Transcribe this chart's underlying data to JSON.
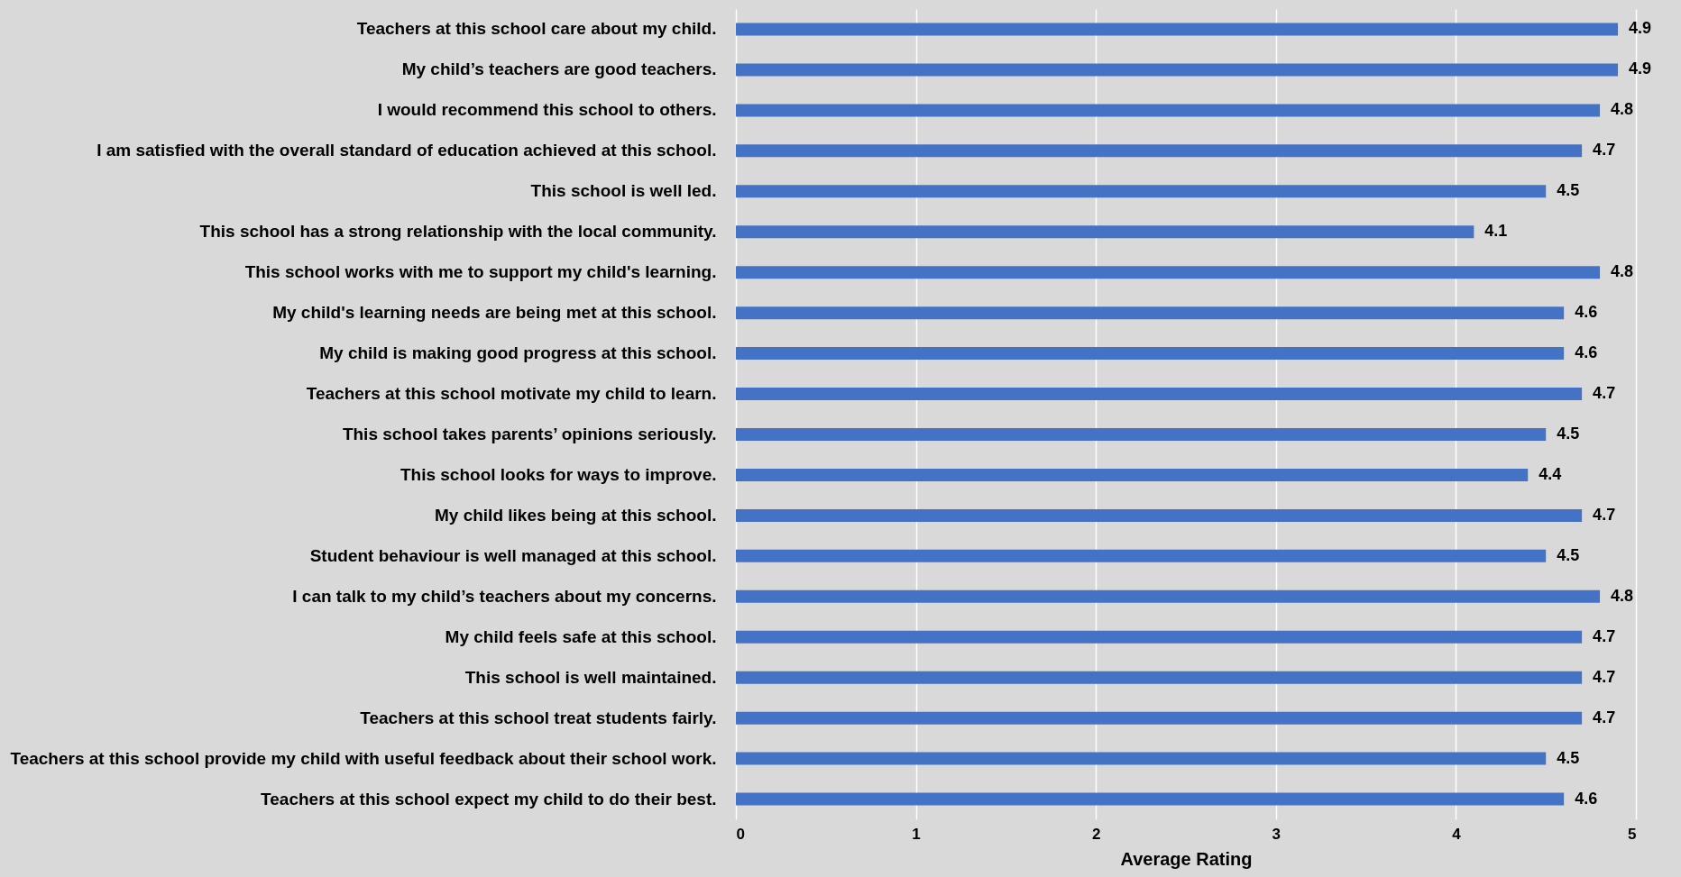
{
  "chart_data": {
    "type": "bar",
    "orientation": "horizontal",
    "xlabel": "Average Rating",
    "categories": [
      "Teachers at this school care about my child.",
      "My child’s teachers are good teachers.",
      "I would recommend this school to others.",
      "I am satisfied with the overall standard of education achieved at this school.",
      "This school is well led.",
      "This school has a strong relationship with the local community.",
      "This school works with me to support my child's learning.",
      "My child's learning needs are being met at this school.",
      "My child is making good progress at this school.",
      "Teachers at this school motivate my child to learn.",
      "This school takes parents’ opinions seriously.",
      "This school looks for ways to improve.",
      "My child likes being at this school.",
      "Student behaviour is well managed at this school.",
      "I can talk to my child’s teachers about my concerns.",
      "My child feels safe at this school.",
      "This school is well maintained.",
      "Teachers at this school treat students fairly.",
      "Teachers at this school provide my child with useful feedback about their school work.",
      "Teachers at this school expect my child to do their best."
    ],
    "values": [
      4.9,
      4.9,
      4.8,
      4.7,
      4.5,
      4.1,
      4.8,
      4.6,
      4.6,
      4.7,
      4.5,
      4.4,
      4.7,
      4.5,
      4.8,
      4.7,
      4.7,
      4.7,
      4.5,
      4.6
    ],
    "color": "#4472c4",
    "xlim": [
      0,
      5
    ],
    "xticks": [
      0,
      1,
      2,
      3,
      4,
      5
    ],
    "grid": "x",
    "data_labels": true
  }
}
